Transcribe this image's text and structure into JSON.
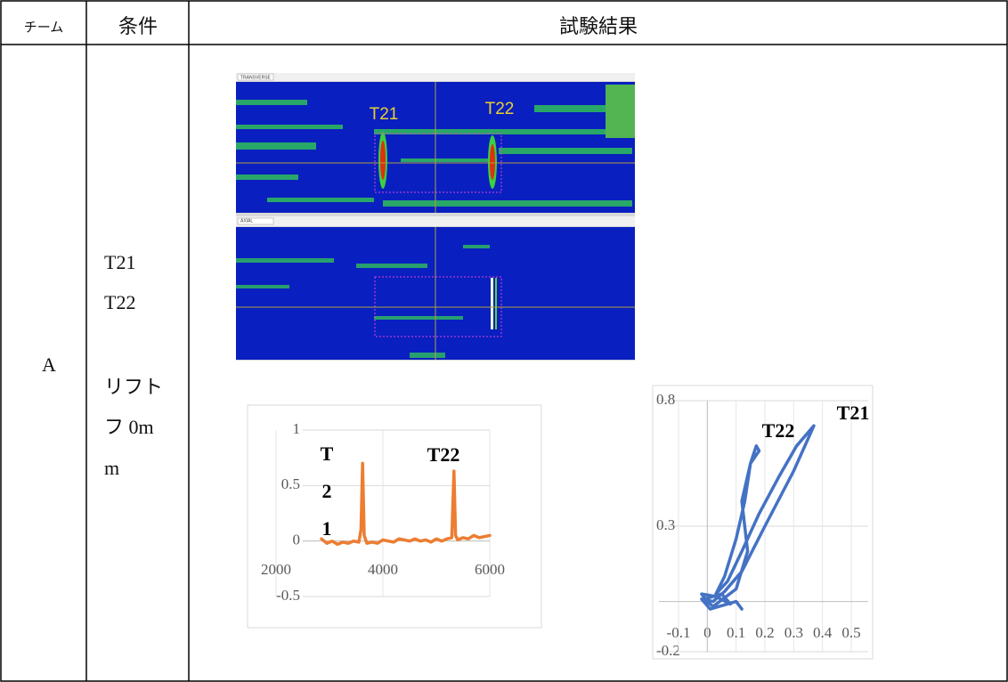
{
  "table": {
    "header": [
      "チーム",
      "条件",
      "試験結果"
    ],
    "rows": [
      [
        "A",
        [
          "T21",
          "T22",
          "リフト",
          "フ 0m",
          "m"
        ]
      ]
    ]
  },
  "heatmap": {
    "panels": [
      "TRANSVERSE",
      "AXIAL"
    ],
    "labels": [
      "T21",
      "T22"
    ]
  },
  "chart_data": [
    {
      "type": "line",
      "x": [
        2850,
        2950,
        3050,
        3150,
        3250,
        3350,
        3450,
        3550,
        3590,
        3620,
        3650,
        3700,
        3800,
        3900,
        4000,
        4100,
        4200,
        4300,
        4400,
        4500,
        4600,
        4700,
        4800,
        4900,
        5000,
        5100,
        5200,
        5290,
        5330,
        5360,
        5400,
        5500,
        5600,
        5700,
        5800,
        5900,
        6000
      ],
      "series": [
        {
          "color": "#ed7d31",
          "values": [
            0.02,
            -0.02,
            0.0,
            -0.03,
            -0.01,
            -0.02,
            0.0,
            -0.01,
            0.1,
            0.7,
            0.05,
            -0.02,
            -0.01,
            -0.02,
            0.01,
            0.0,
            -0.01,
            0.02,
            0.01,
            0.0,
            0.02,
            0.0,
            0.01,
            -0.01,
            0.02,
            0.0,
            0.02,
            0.03,
            0.63,
            0.05,
            0.01,
            0.03,
            0.02,
            0.05,
            0.03,
            0.04,
            0.05
          ]
        }
      ],
      "xlim": [
        2000,
        6000
      ],
      "ylim": [
        -0.5,
        1
      ],
      "xticks": [
        2000,
        4000,
        6000
      ],
      "yticks": [
        -0.5,
        0,
        0.5,
        1
      ],
      "grid": true,
      "annotations": [
        [
          "T",
          "2",
          "1"
        ],
        [
          "T22"
        ]
      ]
    },
    {
      "type": "scatter-line",
      "x": [
        0.0,
        -0.02,
        0.03,
        0.08,
        0.05,
        -0.01,
        0.02,
        0.1,
        0.14,
        0.12,
        0.15,
        0.18,
        0.17,
        0.15,
        0.13,
        0.1,
        0.06,
        0.03,
        0.07,
        0.12,
        0.18,
        0.25,
        0.31,
        0.37,
        0.3,
        0.2,
        0.12,
        0.06,
        0.02,
        -0.02,
        0.01,
        0.1,
        0.12
      ],
      "series": [
        {
          "color": "#4472c4",
          "values": [
            0.0,
            0.03,
            0.02,
            -0.01,
            0.03,
            0.01,
            -0.02,
            0.05,
            0.2,
            0.4,
            0.55,
            0.6,
            0.62,
            0.55,
            0.4,
            0.25,
            0.1,
            0.03,
            0.08,
            0.2,
            0.35,
            0.5,
            0.62,
            0.7,
            0.52,
            0.3,
            0.12,
            0.04,
            0.0,
            0.01,
            -0.03,
            0.0,
            -0.03
          ]
        }
      ],
      "xlim": [
        -0.1,
        0.5
      ],
      "ylim": [
        -0.2,
        0.8
      ],
      "xticks": [
        -0.1,
        0,
        0.1,
        0.2,
        0.3,
        0.4,
        0.5
      ],
      "yticks": [
        -0.2,
        0.3,
        0.8
      ],
      "grid": true,
      "annotations": [
        [
          "T22"
        ],
        [
          "T21"
        ]
      ]
    }
  ]
}
